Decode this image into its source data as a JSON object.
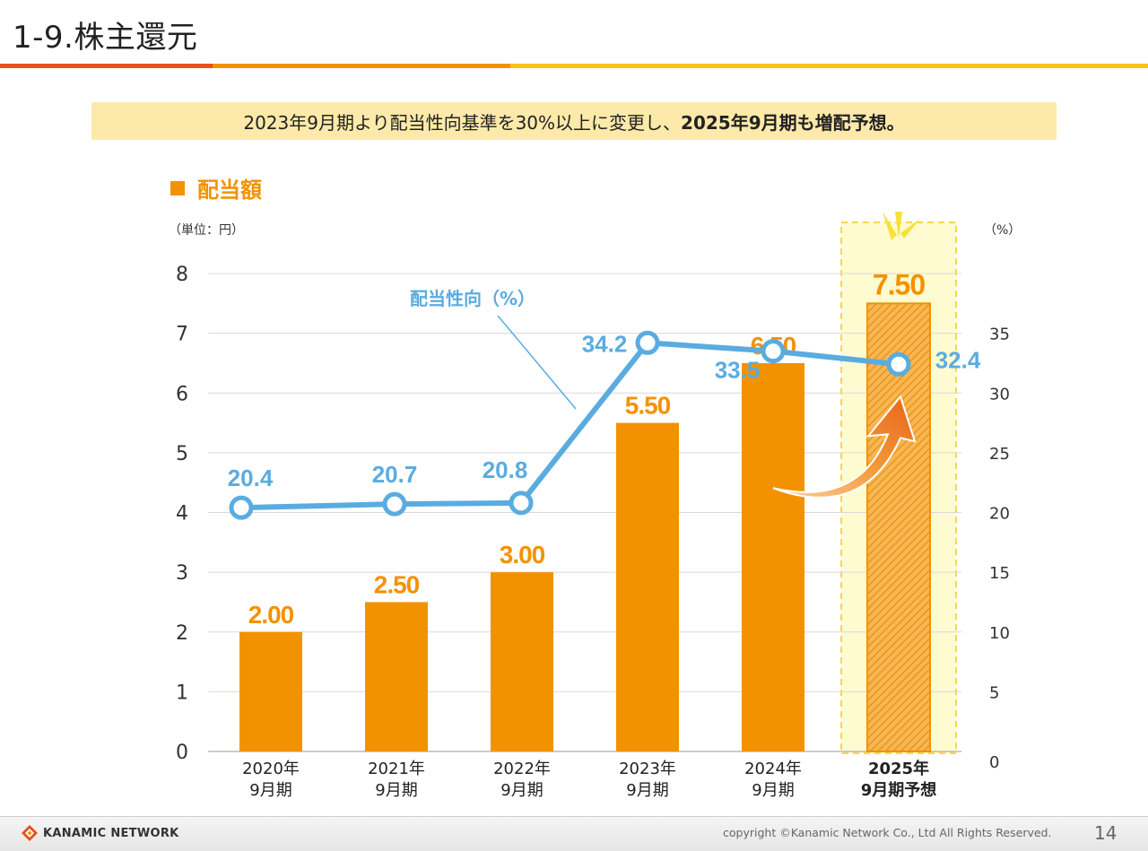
{
  "slide": {
    "title": "1-9.株主還元",
    "banner_text": "2023年9月期より配当性向基準を30%以上に変更し、",
    "banner_bold": "2025年9月期も増配予想。",
    "legend_label": "配当額",
    "unit_left": "（単位：円）",
    "unit_right": "（%）",
    "line_label": "配当性向（%）"
  },
  "footer": {
    "logo_text": "KANAMIC NETWORK",
    "copyright": "copyright ©Kanamic Network Co., Ltd All Rights Reserved.",
    "page_number": "14"
  },
  "colors": {
    "bar": "#f39200",
    "line": "#5aace0",
    "highlight_bg": "#fffbd0",
    "highlight_border": "#f5d94a",
    "arrow": "#f08219"
  },
  "chart_data": {
    "type": "bar",
    "categories": [
      [
        "2020年",
        "9月期"
      ],
      [
        "2021年",
        "9月期"
      ],
      [
        "2022年",
        "9月期"
      ],
      [
        "2023年",
        "9月期"
      ],
      [
        "2024年",
        "9月期"
      ],
      [
        "2025年",
        "9月期予想"
      ]
    ],
    "series": [
      {
        "name": "配当額",
        "axis": "left",
        "type": "bar",
        "values": [
          2.0,
          2.5,
          3.0,
          5.5,
          6.5,
          7.5
        ],
        "labels": [
          "2.00",
          "2.50",
          "3.00",
          "5.50",
          "6.50",
          "7.50"
        ]
      },
      {
        "name": "配当性向（%）",
        "axis": "right",
        "type": "line",
        "values": [
          20.4,
          20.7,
          20.8,
          34.2,
          33.5,
          32.4
        ],
        "labels": [
          "20.4",
          "20.7",
          "20.8",
          "34.2",
          "33.5",
          "32.4"
        ]
      }
    ],
    "y_left": {
      "min": 0,
      "max": 8,
      "ticks": [
        "0",
        "1",
        "2",
        "3",
        "4",
        "5",
        "6",
        "7",
        "8"
      ]
    },
    "y_right": {
      "min": 0,
      "max": 40,
      "ticks": [
        "0",
        "5",
        "10",
        "15",
        "20",
        "25",
        "30",
        "35"
      ]
    },
    "highlighted_category": 5,
    "grid": true,
    "legend_placement": "top-left"
  }
}
